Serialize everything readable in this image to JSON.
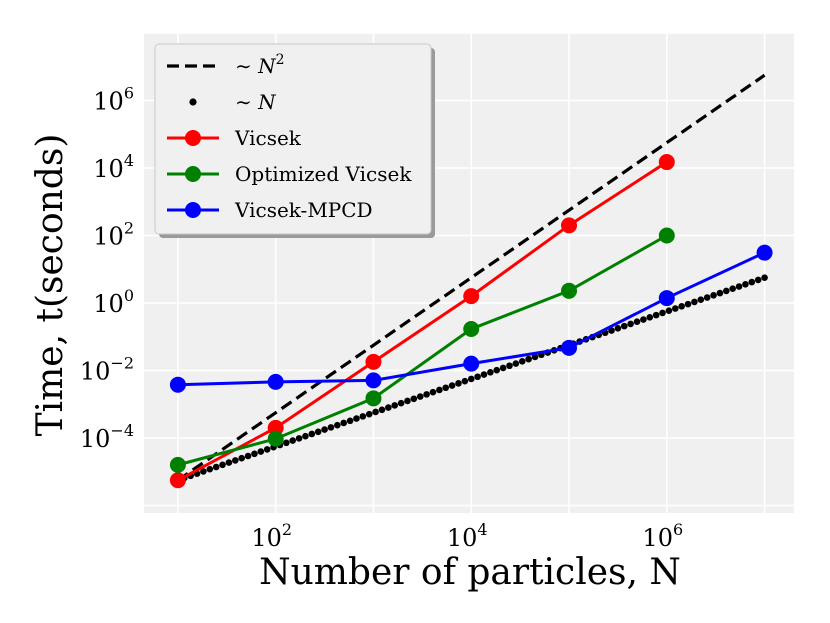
{
  "chart_data": {
    "type": "line",
    "title": "",
    "xlabel": "Number of particles, N",
    "ylabel": "Time, t(seconds)",
    "xscale": "log",
    "yscale": "log",
    "xlim": [
      4.5,
      20000000
    ],
    "ylim": [
      6e-07,
      100000000
    ],
    "grid": true,
    "legend_position": "top-left",
    "x_ticks": [
      {
        "value": 100,
        "base": "10",
        "exp": "2"
      },
      {
        "value": 10000,
        "base": "10",
        "exp": "4"
      },
      {
        "value": 1000000,
        "base": "10",
        "exp": "6"
      }
    ],
    "y_ticks": [
      {
        "value": 0.0001,
        "base": "10",
        "exp": "−4"
      },
      {
        "value": 0.01,
        "base": "10",
        "exp": "−2"
      },
      {
        "value": 1,
        "base": "10",
        "exp": "0"
      },
      {
        "value": 100,
        "base": "10",
        "exp": "2"
      },
      {
        "value": 10000,
        "base": "10",
        "exp": "4"
      },
      {
        "value": 1000000,
        "base": "10",
        "exp": "6"
      }
    ],
    "series": [
      {
        "name": "∼ N",
        "name_prefix": "∼ ",
        "name_var": "N",
        "name_sup": "2",
        "style": "dashed",
        "color": "#000000",
        "x": [
          10,
          10000000
        ],
        "y": [
          5.62e-06,
          5620000
        ]
      },
      {
        "name": "∼ N",
        "name_prefix": "∼ ",
        "name_var": "N",
        "name_sup": "",
        "style": "dotted",
        "color": "#000000",
        "x": [
          10,
          10000000
        ],
        "y": [
          5.62e-06,
          5.62
        ]
      },
      {
        "name": "Vicsek",
        "style": "marker-line",
        "color": "#ff0000",
        "x": [
          10,
          100,
          1000,
          10000,
          100000,
          1000000
        ],
        "y": [
          5.6e-06,
          0.0002,
          0.018,
          1.6,
          200,
          15000
        ]
      },
      {
        "name": "Optimized Vicsek",
        "style": "marker-line",
        "color": "#008000",
        "x": [
          10,
          100,
          1000,
          10000,
          100000,
          1000000
        ],
        "y": [
          1.6e-05,
          9.5e-05,
          0.0015,
          0.17,
          2.3,
          100
        ]
      },
      {
        "name": "Vicsek-MPCD",
        "style": "marker-line",
        "color": "#0000ff",
        "x": [
          10,
          100,
          1000,
          10000,
          100000,
          1000000,
          10000000
        ],
        "y": [
          0.0038,
          0.0046,
          0.0051,
          0.016,
          0.047,
          1.4,
          31
        ]
      }
    ]
  }
}
